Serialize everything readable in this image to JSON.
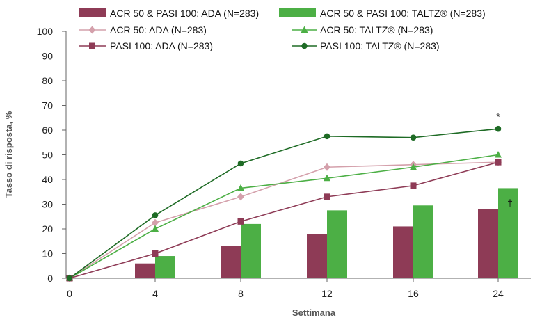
{
  "chart_data": {
    "type": "bar",
    "xlabel": "Settimana",
    "ylabel": "Tasso di risposta, %",
    "ylim": [
      0,
      100
    ],
    "yticks": [
      0,
      10,
      20,
      30,
      40,
      50,
      60,
      70,
      80,
      90,
      100
    ],
    "xticks": [
      0,
      4,
      8,
      12,
      16,
      24
    ],
    "grid": false,
    "legend_position": "top",
    "colors": {
      "ada_bar": "#8e3b56",
      "taltz_bar": "#4caf45",
      "acr50_ada": "#d4a0ab",
      "acr50_taltz": "#4caf45",
      "pasi_ada": "#8e3b56",
      "pasi_taltz": "#1e6b25"
    },
    "bar_series": [
      {
        "name": "ACR 50 & PASI 100: ADA (N=283)",
        "x": [
          4,
          8,
          12,
          16,
          24
        ],
        "values": [
          6,
          13,
          18,
          21,
          28
        ]
      },
      {
        "name": "ACR 50 & PASI 100: TALTZ® (N=283)",
        "x": [
          4,
          8,
          12,
          16,
          24
        ],
        "values": [
          9,
          22,
          27.5,
          29.5,
          36.5
        ]
      }
    ],
    "line_series": [
      {
        "name": "ACR 50: ADA (N=283)",
        "marker": "diamond",
        "x": [
          0,
          4,
          8,
          12,
          16,
          24
        ],
        "values": [
          0,
          22.5,
          33,
          45,
          46,
          47
        ]
      },
      {
        "name": "ACR 50: TALTZ® (N=283)",
        "marker": "triangle",
        "x": [
          0,
          4,
          8,
          12,
          16,
          24
        ],
        "values": [
          0,
          20,
          36.5,
          40.5,
          45,
          50
        ]
      },
      {
        "name": "PASI 100: ADA (N=283)",
        "marker": "square",
        "x": [
          0,
          4,
          8,
          12,
          16,
          24
        ],
        "values": [
          0,
          10,
          23,
          33,
          37.5,
          47
        ]
      },
      {
        "name": "PASI 100: TALTZ® (N=283)",
        "marker": "circle",
        "x": [
          0,
          4,
          8,
          12,
          16,
          24
        ],
        "values": [
          0,
          25.5,
          46.5,
          57.5,
          57,
          60.5
        ]
      }
    ],
    "annotations": [
      {
        "text": "*",
        "x": 24,
        "y": 65
      },
      {
        "text": "†",
        "x": 24,
        "y": 30
      }
    ]
  }
}
